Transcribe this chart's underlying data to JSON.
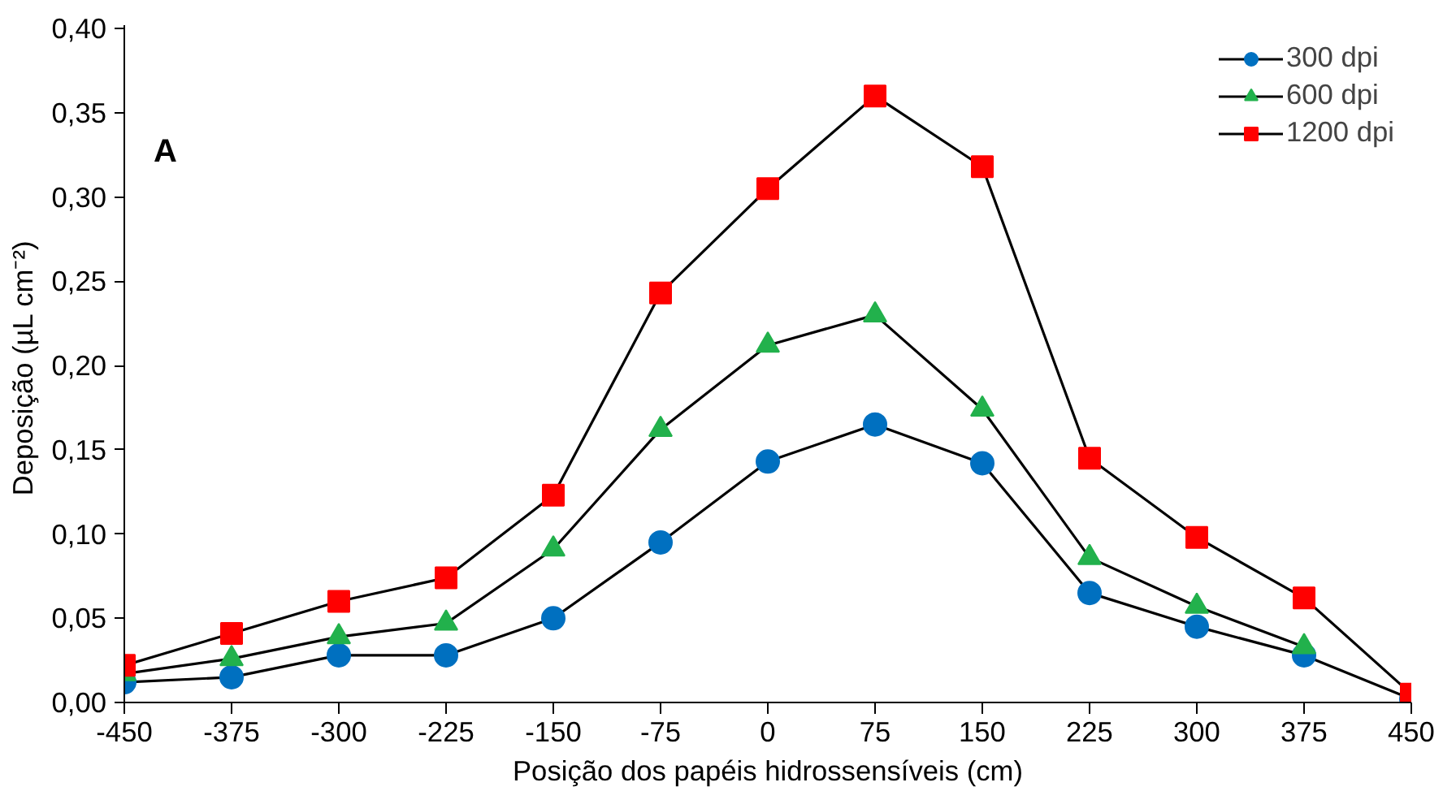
{
  "chart_data": {
    "type": "line",
    "xlabel": "Posição dos papéis hidrossensíveis (cm)",
    "ylabel": "Deposição  (µL cm⁻²)",
    "annotations": [
      "A"
    ],
    "x": [
      -450,
      -375,
      -300,
      -225,
      -150,
      -75,
      0,
      75,
      150,
      225,
      300,
      375,
      450
    ],
    "series": [
      {
        "name": "300 dpi",
        "color": "#0070c0",
        "marker": "circle",
        "values": [
          0.012,
          0.015,
          0.028,
          0.028,
          0.05,
          0.095,
          0.143,
          0.165,
          0.142,
          0.065,
          0.045,
          0.028,
          0.002
        ]
      },
      {
        "name": "600 dpi",
        "color": "#22b14c",
        "marker": "triangle",
        "values": [
          0.017,
          0.026,
          0.039,
          0.047,
          0.091,
          0.162,
          0.212,
          0.23,
          0.174,
          0.086,
          0.057,
          0.033,
          null
        ]
      },
      {
        "name": "1200 dpi",
        "color": "#ff0000",
        "marker": "square",
        "values": [
          0.022,
          0.041,
          0.06,
          0.074,
          0.123,
          0.243,
          0.305,
          0.36,
          0.318,
          0.145,
          0.098,
          0.062,
          0.005
        ]
      }
    ],
    "xlim": [
      -450,
      450
    ],
    "xticks": [
      -450,
      -375,
      -300,
      -225,
      -150,
      -75,
      0,
      75,
      150,
      225,
      300,
      375,
      450
    ],
    "ylim": [
      0,
      0.4
    ],
    "yticks": [
      {
        "value": 0,
        "label": "0,00"
      },
      {
        "value": 0.05,
        "label": "0,05"
      },
      {
        "value": 0.1,
        "label": "0,10"
      },
      {
        "value": 0.15,
        "label": "0,15"
      },
      {
        "value": 0.2,
        "label": "0,20"
      },
      {
        "value": 0.25,
        "label": "0,25"
      },
      {
        "value": 0.3,
        "label": "0,30"
      },
      {
        "value": 0.35,
        "label": "0,35"
      },
      {
        "value": 0.4,
        "label": "0,40"
      }
    ],
    "grid": false,
    "legend": "top right",
    "line_style": "solid"
  }
}
